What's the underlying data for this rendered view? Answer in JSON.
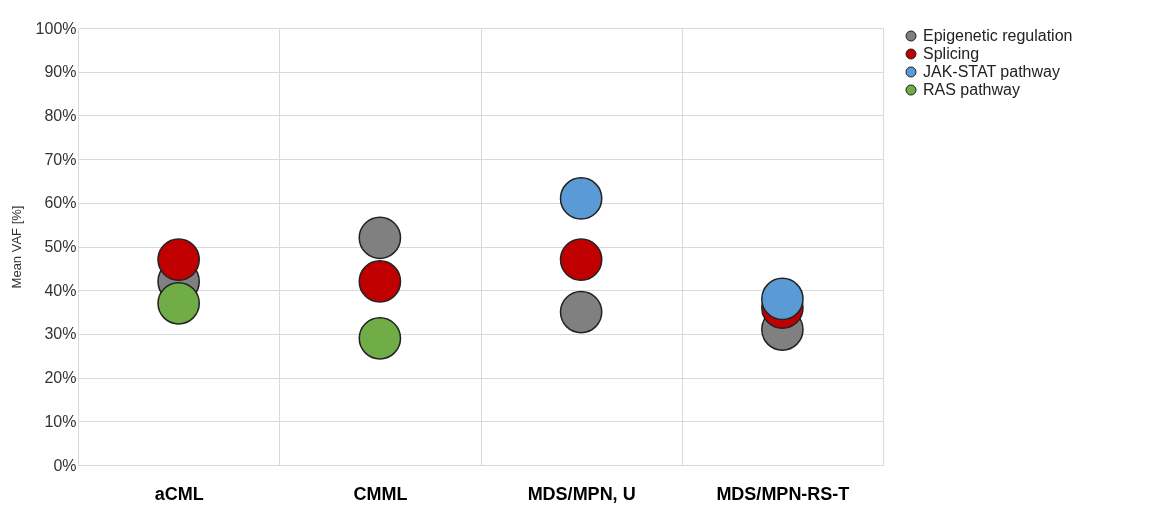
{
  "chart_data": {
    "type": "scatter",
    "ylabel": "Mean VAF [%]",
    "categories": [
      "aCML",
      "CMML",
      "MDS/MPN, U",
      "MDS/MPN-RS-T"
    ],
    "series": [
      {
        "name": "Epigenetic regulation",
        "color": "#808080",
        "values": [
          42,
          52,
          35,
          31
        ]
      },
      {
        "name": "Splicing",
        "color": "#c00000",
        "values": [
          47,
          42,
          47,
          36
        ]
      },
      {
        "name": "JAK-STAT pathway",
        "color": "#5b9bd5",
        "values": [
          null,
          null,
          61,
          38
        ]
      },
      {
        "name": "RAS pathway",
        "color": "#70ad47",
        "values": [
          37,
          29,
          null,
          null
        ]
      }
    ],
    "ylim": [
      0,
      100
    ],
    "yticks": [
      {
        "value": 0,
        "label": "0%"
      },
      {
        "value": 10,
        "label": "10%"
      },
      {
        "value": 20,
        "label": "20%"
      },
      {
        "value": 30,
        "label": "30%"
      },
      {
        "value": 40,
        "label": "40%"
      },
      {
        "value": 50,
        "label": "50%"
      },
      {
        "value": 60,
        "label": "60%"
      },
      {
        "value": 70,
        "label": "70%"
      },
      {
        "value": 80,
        "label": "80%"
      },
      {
        "value": 90,
        "label": "90%"
      },
      {
        "value": 100,
        "label": "100%"
      }
    ],
    "grid": true,
    "legend": "top right",
    "marker": "circle"
  }
}
